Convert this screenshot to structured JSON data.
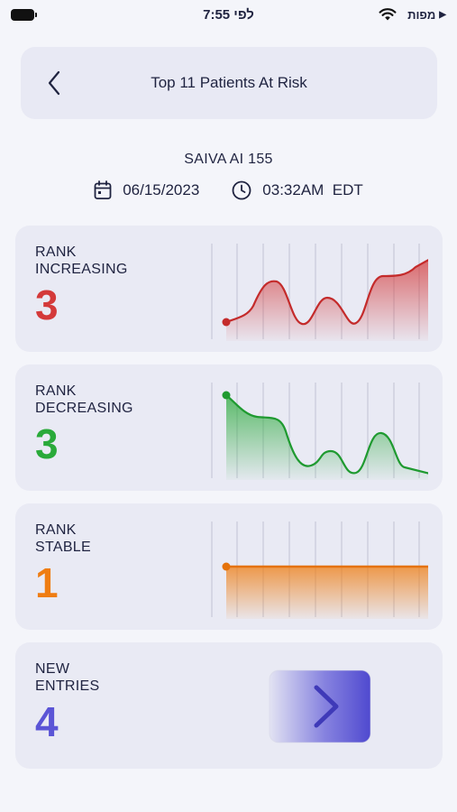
{
  "status_bar": {
    "carrier": "מפות",
    "time": "7:55 לפי"
  },
  "header": {
    "title": "Top 11 Patients At Risk"
  },
  "info": {
    "facility": "SAIVA AI 155",
    "date": "06/15/2023",
    "time": "03:32AM  EDT"
  },
  "cards": [
    {
      "label": "RANK\nINCREASING",
      "value": "3",
      "color": "#d43a3a",
      "chart": "increasing"
    },
    {
      "label": "RANK\nDECREASING",
      "value": "3",
      "color": "#2aaa3a",
      "chart": "decreasing"
    },
    {
      "label": "RANK\nSTABLE",
      "value": "1",
      "color": "#ef7d12",
      "chart": "stable"
    },
    {
      "label": "NEW\nENTRIES",
      "value": "4",
      "color": "#5b55d6",
      "chart": "arrow"
    }
  ],
  "colors": {
    "accent": "#5b55d6",
    "increasing": "#d43a3a",
    "decreasing": "#2aaa3a",
    "stable": "#ef7d12"
  },
  "icons": [
    "back-chevron-icon",
    "calendar-icon",
    "clock-icon",
    "wifi-icon",
    "battery-icon",
    "arrow-into-box-icon"
  ]
}
